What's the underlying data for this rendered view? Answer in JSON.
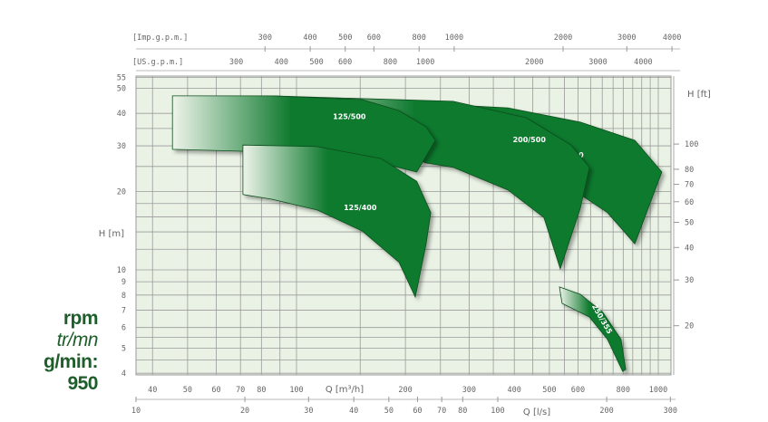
{
  "chart_data": {
    "type": "area",
    "x_scale": "log",
    "y_scale": "log",
    "xlabel": "Q [m³/h]",
    "ylabel": "H [m]",
    "ylabel_right": "H [ft]",
    "xlabel_secondary": "Q [l/s]",
    "top_axis_1_label": "[Imp.g.p.m.]",
    "top_axis_2_label": "[US.g.p.m.]",
    "xlim": [
      36,
      1030
    ],
    "ylim": [
      4,
      56
    ],
    "grid": true,
    "x_ticks_m3h": [
      "40",
      "50",
      "60",
      "70",
      "80",
      "100",
      "200",
      "300",
      "400",
      "500",
      "600",
      "800",
      "1000"
    ],
    "x_ticks_ls": [
      "10",
      "20",
      "30",
      "40",
      "50",
      "60",
      "70",
      "80",
      "100",
      "200",
      "300"
    ],
    "x_ticks_imp_gpm": [
      "300",
      "400",
      "500",
      "600",
      "800",
      "1000",
      "2000",
      "3000",
      "4000"
    ],
    "x_ticks_us_gpm": [
      "300",
      "400",
      "500",
      "600",
      "800",
      "1000",
      "2000",
      "3000",
      "4000"
    ],
    "y_ticks_m": [
      "55",
      "50",
      "40",
      "30",
      "20",
      "10",
      "9",
      "8",
      "7",
      "6",
      "5",
      "4"
    ],
    "y_ticks_ft": [
      "100",
      "80",
      "70",
      "60",
      "50",
      "40",
      "30",
      "20"
    ],
    "colors": {
      "band_dark": "#0f7a2f",
      "band_light": "#eef4ea",
      "plot_bg": "#eaf2e5",
      "grid": "#9a9a9a",
      "rpm_text": "#1d5e2a"
    },
    "series": [
      {
        "name": "250/500",
        "label_at": [
          560,
          27
        ],
        "outline": [
          [
            114,
            45.9
          ],
          [
            384,
            42
          ],
          [
            609,
            37
          ],
          [
            861,
            31.5
          ],
          [
            1023,
            23.8
          ],
          [
            861,
            12.6
          ],
          [
            724,
            16.6
          ],
          [
            609,
            19.5
          ],
          [
            542,
            21.1
          ],
          [
            483,
            22.9
          ]
        ]
      },
      {
        "name": "200/500",
        "label_at": [
          440,
          31
        ],
        "outline": [
          [
            85.5,
            46.7
          ],
          [
            271,
            44.5
          ],
          [
            431,
            38.5
          ],
          [
            574,
            30.2
          ],
          [
            645,
            24.8
          ],
          [
            609,
            17.3
          ],
          [
            536,
            10.1
          ],
          [
            483,
            15.9
          ],
          [
            384,
            20.3
          ],
          [
            271,
            24.8
          ],
          [
            228,
            25.8
          ]
        ]
      },
      {
        "name": "125/500",
        "label_at": [
          140,
          38
        ],
        "outline": [
          [
            45.4,
            46.7
          ],
          [
            85.5,
            46.7
          ],
          [
            152,
            45.2
          ],
          [
            192,
            41
          ],
          [
            228,
            35.5
          ],
          [
            242,
            31.5
          ],
          [
            215,
            23.8
          ],
          [
            152,
            26.8
          ],
          [
            85.5,
            28.4
          ],
          [
            45.4,
            29.1
          ]
        ]
      },
      {
        "name": "125/400",
        "label_at": [
          150,
          17
        ],
        "outline": [
          [
            71.1,
            30.2
          ],
          [
            114,
            29.8
          ],
          [
            171,
            26.8
          ],
          [
            215,
            21.9
          ],
          [
            235,
            16.6
          ],
          [
            228,
            12.5
          ],
          [
            213,
            7.86
          ],
          [
            192,
            10.7
          ],
          [
            152,
            14.1
          ],
          [
            114,
            17
          ],
          [
            85.5,
            18.7
          ],
          [
            71.1,
            19.5
          ]
        ]
      },
      {
        "name": "250/355",
        "label_at": [
          690,
          6.4
        ],
        "outline": [
          [
            533,
            8.59
          ],
          [
            609,
            8.05
          ],
          [
            703,
            6.86
          ],
          [
            789,
            5.4
          ],
          [
            813,
            4.14
          ],
          [
            797,
            4.07
          ],
          [
            724,
            5.4
          ],
          [
            645,
            6.59
          ],
          [
            542,
            7.43
          ]
        ]
      }
    ]
  },
  "rpm": {
    "line1": "rpm",
    "line2": "tr/mn",
    "line3": "g/min:",
    "value": "950"
  }
}
